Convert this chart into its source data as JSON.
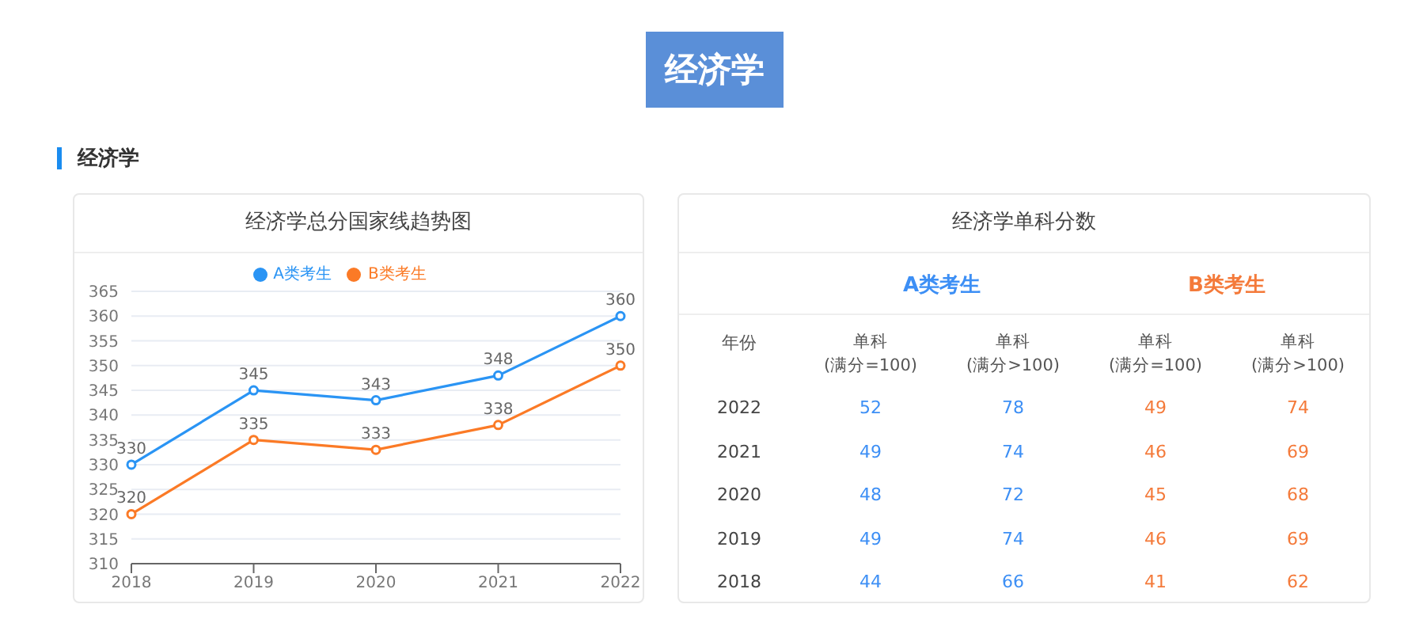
{
  "chart_data": [
    {
      "type": "line",
      "title": "经济学总分国家线趋势图",
      "annotations": [
        "经济学",
        "经济学"
      ],
      "categories": [
        "2018",
        "2019",
        "2020",
        "2021",
        "2022"
      ],
      "series": [
        {
          "name": "A类考生",
          "color": "#2a94f4",
          "values": [
            330,
            345,
            343,
            348,
            360
          ]
        },
        {
          "name": "B类考生",
          "color": "#fb7a26",
          "values": [
            320,
            335,
            333,
            338,
            350
          ]
        }
      ],
      "ylim": [
        310,
        365
      ],
      "yticks": [
        310,
        315,
        320,
        325,
        330,
        335,
        340,
        345,
        350,
        355,
        360,
        365
      ],
      "grid": "y",
      "legend": "top",
      "marker": "circle",
      "data_labels": true
    },
    {
      "type": "heatmap",
      "data_labels": true,
      "title": "经济学单科分数",
      "annotations": [
        "A类考生",
        "B类考生"
      ],
      "ylabel": "年份",
      "categories": [
        "单科(满分=100)",
        "单科(满分>100)",
        "单科(满分=100)",
        "单科(满分>100)"
      ],
      "colors": [
        "#3d8ff5",
        "#3d8ff5",
        "#f47a3a",
        "#f47a3a"
      ],
      "y_categories": [
        "2022",
        "2021",
        "2020",
        "2019",
        "2018"
      ],
      "cells": [
        [
          52,
          78,
          49,
          74
        ],
        [
          49,
          74,
          46,
          69
        ],
        [
          48,
          72,
          45,
          68
        ],
        [
          49,
          74,
          46,
          69
        ],
        [
          44,
          66,
          41,
          62
        ]
      ]
    }
  ]
}
